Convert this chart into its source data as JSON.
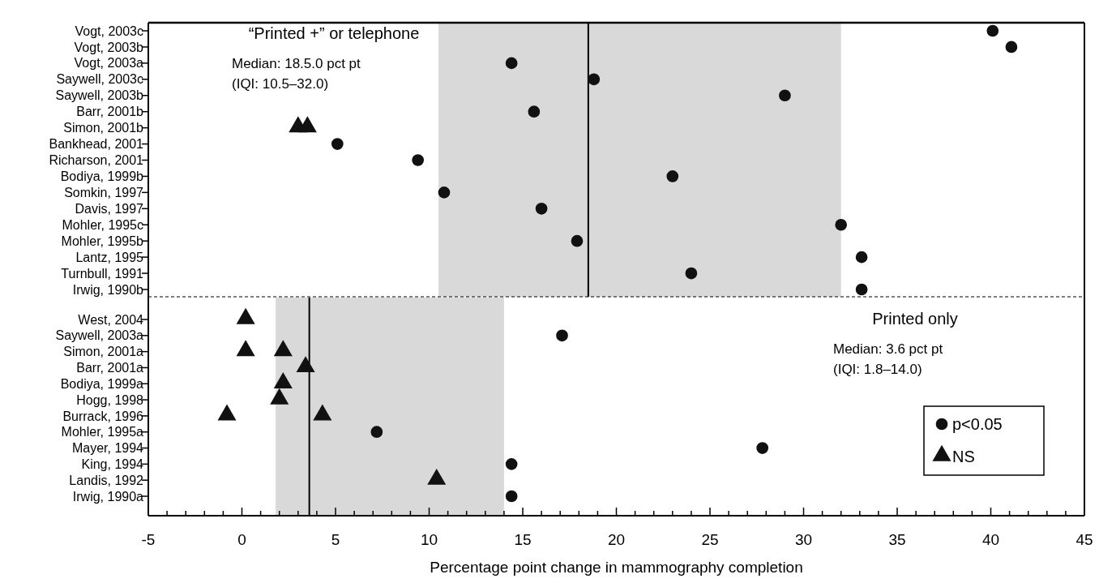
{
  "chart_data": [
    {
      "type": "scatter",
      "orientation": "horizontal",
      "tick_labels": "y",
      "legend": false,
      "categories": [
        "Vogt, 2003c",
        "Vogt, 2003b",
        "Vogt, 2003a",
        "Saywell, 2003c",
        "Saywell, 2003b",
        "Barr, 2001b",
        "Simon, 2001b",
        "Bankhead, 2001",
        "Richarson, 2001",
        "Bodiya, 1999b",
        "Somkin, 1997",
        "Davis, 1997",
        "Mohler, 1995c",
        "Mohler, 1995b",
        "Lantz, 1995",
        "Turnbull, 1991",
        "Irwig, 1990b"
      ],
      "series": [
        {
          "color": "#111111",
          "marker": "circle",
          "values": [
            40.1,
            41.1,
            14.4,
            18.8,
            29.0,
            15.6,
            null,
            5.1,
            9.4,
            23.0,
            10.8,
            16.0,
            32.0,
            17.9,
            33.1,
            24.0,
            33.1
          ]
        },
        {
          "color": "#111111",
          "marker": "triangle",
          "values": [
            null,
            null,
            null,
            null,
            null,
            null,
            3.0,
            null,
            null,
            null,
            null,
            null,
            null,
            null,
            null,
            null,
            null
          ]
        },
        {
          "color": "#111111",
          "marker": "triangle",
          "values": [
            null,
            null,
            null,
            null,
            null,
            null,
            3.5,
            null,
            null,
            null,
            null,
            null,
            null,
            null,
            null,
            null,
            null
          ]
        }
      ],
      "xlim": [
        -5,
        45
      ],
      "ref_lines": [
        {
          "axis": "x",
          "value": 18.5,
          "color": "#000000"
        }
      ],
      "bands": [
        {
          "axis": "x",
          "from": 10.5,
          "to": 32.0,
          "color": "#d9d9d9"
        }
      ],
      "annotations": [
        "“Printed +” or telephone",
        "Median: 18.5.0 pct pt",
        "(IQI: 10.5–32.0)"
      ]
    },
    {
      "type": "scatter",
      "orientation": "horizontal",
      "legend": "bottom right",
      "categories": [
        "West, 2004",
        "Saywell, 2003a",
        "Simon, 2001a",
        "Barr, 2001a",
        "Bodiya, 1999a",
        "Hogg, 1998",
        "Burrack, 1996",
        "Mohler, 1995a",
        "Mayer, 1994",
        "King, 1994",
        "Landis, 1992",
        "Irwig, 1990a"
      ],
      "series": [
        {
          "name": "p<0.05",
          "color": "#111111",
          "marker": "circle",
          "values": [
            null,
            17.1,
            null,
            null,
            null,
            null,
            null,
            7.2,
            27.8,
            14.4,
            null,
            14.4
          ]
        },
        {
          "name": "NS",
          "color": "#111111",
          "marker": "triangle",
          "values": [
            0.2,
            null,
            0.2,
            3.4,
            2.2,
            2.0,
            -0.8,
            null,
            null,
            null,
            10.4,
            null
          ]
        },
        {
          "color": "#111111",
          "marker": "triangle",
          "values": [
            null,
            null,
            2.2,
            null,
            null,
            null,
            4.3,
            null,
            null,
            null,
            null,
            null
          ]
        }
      ],
      "xlim": [
        -5,
        45
      ],
      "xticks": [
        -5,
        {
          "value": -4,
          "label": null
        },
        {
          "value": -3,
          "label": null
        },
        {
          "value": -2,
          "label": null
        },
        {
          "value": -1,
          "label": null
        },
        0,
        {
          "value": 1,
          "label": null
        },
        {
          "value": 2,
          "label": null
        },
        {
          "value": 3,
          "label": null
        },
        {
          "value": 4,
          "label": null
        },
        5,
        {
          "value": 6,
          "label": null
        },
        {
          "value": 7,
          "label": null
        },
        {
          "value": 8,
          "label": null
        },
        {
          "value": 9,
          "label": null
        },
        10,
        {
          "value": 11,
          "label": null
        },
        {
          "value": 12,
          "label": null
        },
        {
          "value": 13,
          "label": null
        },
        {
          "value": 14,
          "label": null
        },
        15,
        {
          "value": 16,
          "label": null
        },
        {
          "value": 17,
          "label": null
        },
        {
          "value": 18,
          "label": null
        },
        {
          "value": 19,
          "label": null
        },
        20,
        {
          "value": 21,
          "label": null
        },
        {
          "value": 22,
          "label": null
        },
        {
          "value": 23,
          "label": null
        },
        {
          "value": 24,
          "label": null
        },
        25,
        {
          "value": 26,
          "label": null
        },
        {
          "value": 27,
          "label": null
        },
        {
          "value": 28,
          "label": null
        },
        {
          "value": 29,
          "label": null
        },
        30,
        {
          "value": 31,
          "label": null
        },
        {
          "value": 32,
          "label": null
        },
        {
          "value": 33,
          "label": null
        },
        {
          "value": 34,
          "label": null
        },
        35,
        {
          "value": 36,
          "label": null
        },
        {
          "value": 37,
          "label": null
        },
        {
          "value": 38,
          "label": null
        },
        {
          "value": 39,
          "label": null
        },
        40,
        {
          "value": 41,
          "label": null
        },
        {
          "value": 42,
          "label": null
        },
        {
          "value": 43,
          "label": null
        },
        {
          "value": 44,
          "label": null
        },
        45
      ],
      "xlabel": "Percentage point change in mammography completion",
      "ref_lines": [
        {
          "axis": "x",
          "value": 3.6,
          "color": "#000000"
        }
      ],
      "bands": [
        {
          "axis": "x",
          "from": 1.8,
          "to": 14.0,
          "color": "#d9d9d9"
        }
      ],
      "annotations": [
        "Printed only",
        "Median: 3.6 pct pt",
        "(IQI: 1.8–14.0)"
      ]
    }
  ]
}
